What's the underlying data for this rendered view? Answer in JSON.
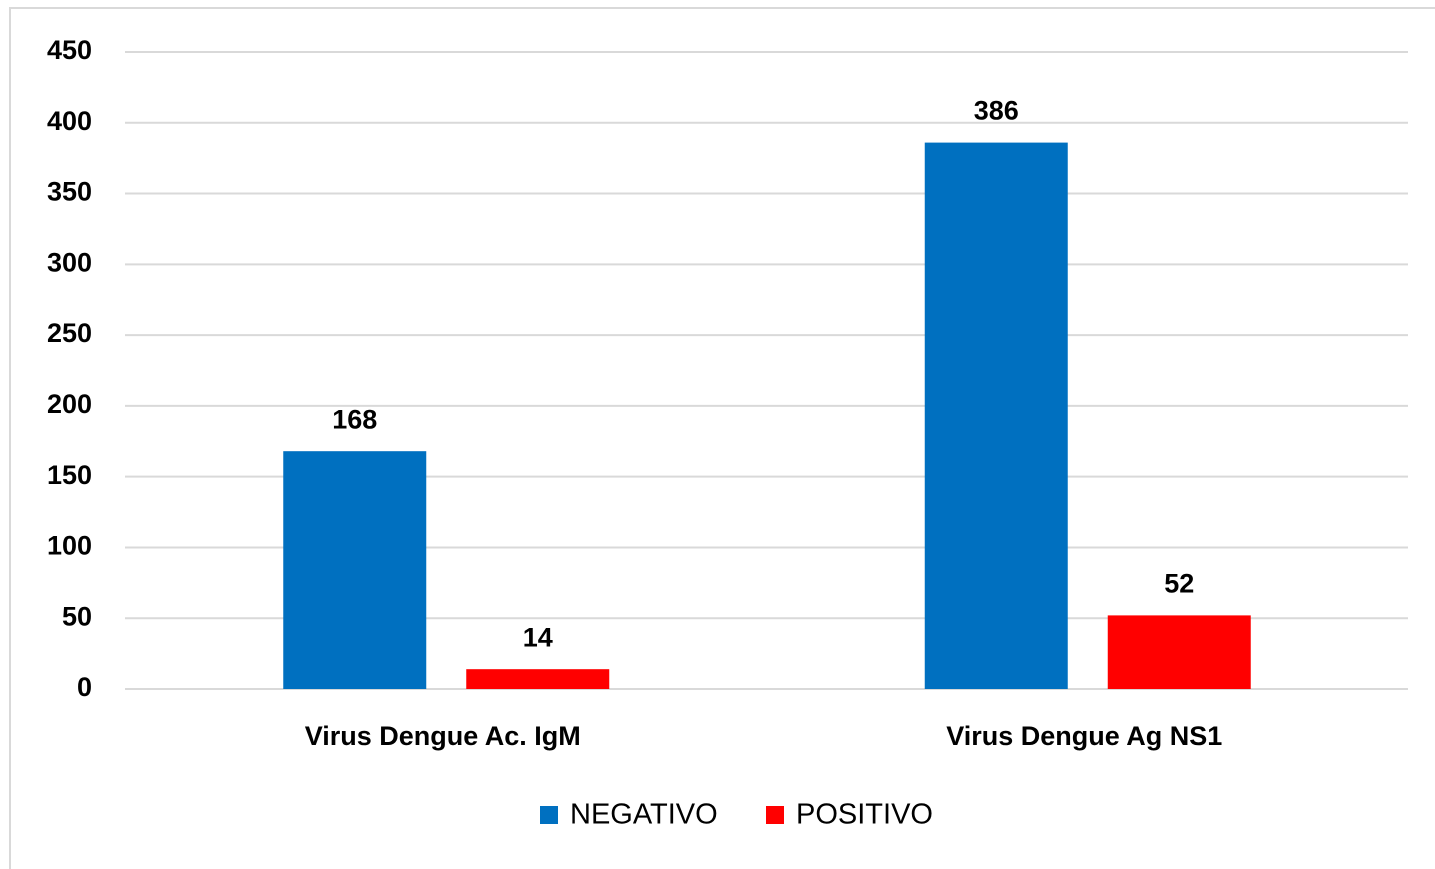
{
  "chart_data": {
    "type": "bar",
    "categories": [
      "Virus Dengue Ac. IgM",
      "Virus Dengue Ag NS1"
    ],
    "series": [
      {
        "name": "NEGATIVO",
        "color": "#0070c0",
        "values": [
          168,
          386
        ]
      },
      {
        "name": "POSITIVO",
        "color": "#ff0000",
        "values": [
          14,
          52
        ]
      }
    ],
    "ylim": [
      0,
      450
    ],
    "yticks": [
      0,
      50,
      100,
      150,
      200,
      250,
      300,
      350,
      400,
      450
    ],
    "grid": true,
    "legend": "bottom"
  }
}
